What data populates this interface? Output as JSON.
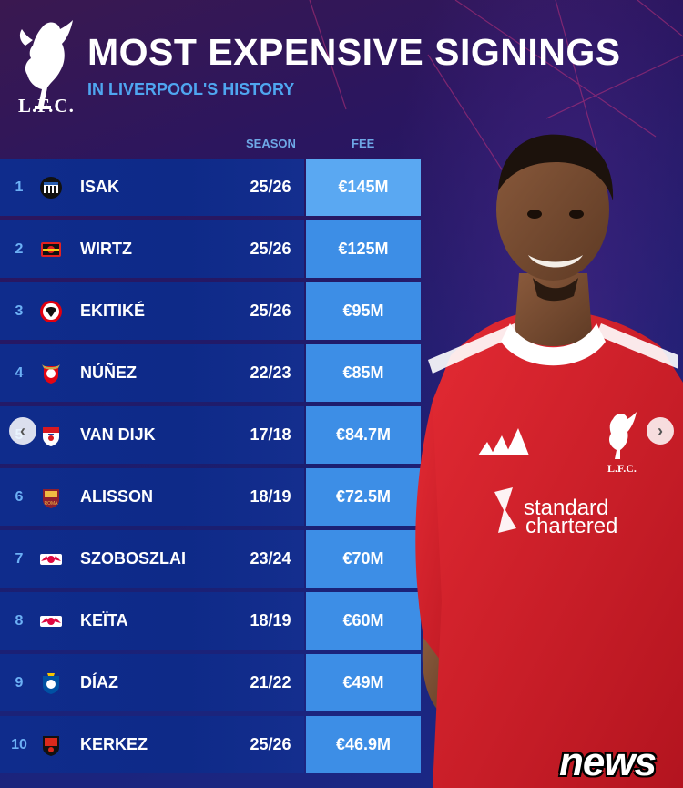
{
  "header": {
    "crest_text": "L.F.C.",
    "title": "MOST EXPENSIVE SIGNINGS",
    "subtitle": "IN LIVERPOOL'S HISTORY"
  },
  "columns": {
    "season": "SEASON",
    "fee": "FEE"
  },
  "rows": [
    {
      "rank": "1",
      "name": "ISAK",
      "season": "25/26",
      "fee": "€145M",
      "badge": "newcastle-badge-icon"
    },
    {
      "rank": "2",
      "name": "WIRTZ",
      "season": "25/26",
      "fee": "€125M",
      "badge": "leverkusen-badge-icon"
    },
    {
      "rank": "3",
      "name": "EKITIKÉ",
      "season": "25/26",
      "fee": "€95M",
      "badge": "frankfurt-badge-icon"
    },
    {
      "rank": "4",
      "name": "NÚÑEZ",
      "season": "22/23",
      "fee": "€85M",
      "badge": "benfica-badge-icon"
    },
    {
      "rank": "5",
      "name": "VAN DIJK",
      "season": "17/18",
      "fee": "€84.7M",
      "badge": "southampton-badge-icon"
    },
    {
      "rank": "6",
      "name": "ALISSON",
      "season": "18/19",
      "fee": "€72.5M",
      "badge": "roma-badge-icon"
    },
    {
      "rank": "7",
      "name": "SZOBOSZLAI",
      "season": "23/24",
      "fee": "€70M",
      "badge": "leipzig-badge-icon"
    },
    {
      "rank": "8",
      "name": "KEÏTA",
      "season": "18/19",
      "fee": "€60M",
      "badge": "leipzig-badge-icon"
    },
    {
      "rank": "9",
      "name": "DÍAZ",
      "season": "21/22",
      "fee": "€49M",
      "badge": "porto-badge-icon"
    },
    {
      "rank": "10",
      "name": "KERKEZ",
      "season": "25/26",
      "fee": "€46.9M",
      "badge": "bournemouth-badge-icon"
    }
  ],
  "player": {
    "sponsor_line1": "standard",
    "sponsor_line2": "chartered",
    "shirt_crest_text": "L.F.C."
  },
  "watermark": "news",
  "colors": {
    "fee_cell": "#3d8ee6",
    "row_band": "#0f2c8c",
    "accent": "#4fa6f0",
    "shirt": "#d4202c"
  }
}
